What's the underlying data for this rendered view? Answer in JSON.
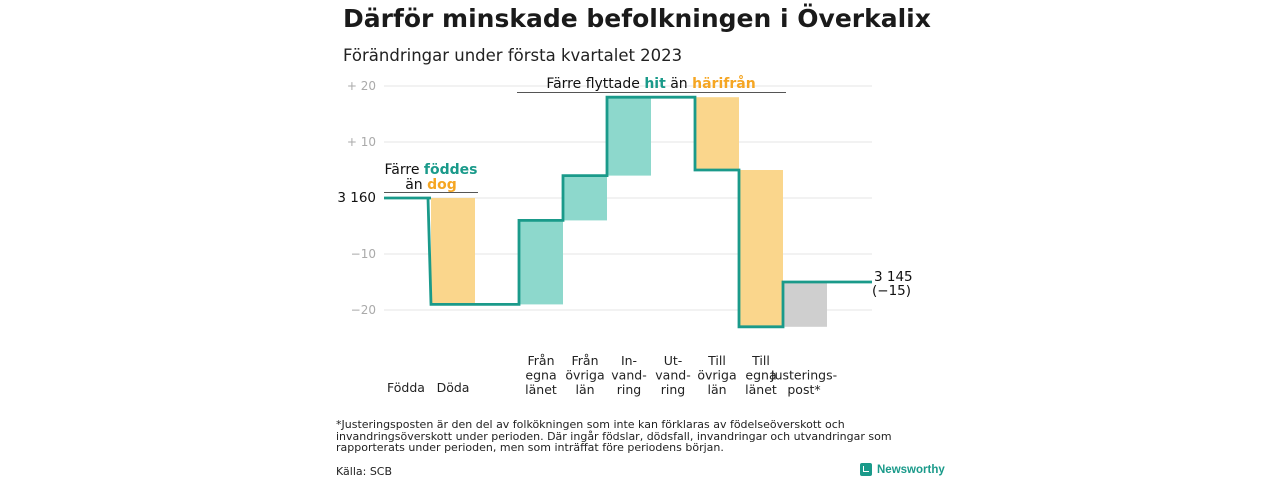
{
  "header": {
    "title": "Därför minskade befolkningen i Överkalix",
    "subtitle": "Förändringar under första kvartalet 2023"
  },
  "colors": {
    "teal": "#1a9a8a",
    "teal_fill": "#8dd8cc",
    "orange_fill": "#fad68c",
    "orange_text": "#f5a623",
    "gray_fill": "#cfcfcf"
  },
  "chart_data": {
    "type": "waterfall",
    "start_value": 3160,
    "end_value": 3145,
    "total_change": -15,
    "start_label": "3 160",
    "end_label": "3 145",
    "end_change_label": "(−15)",
    "ylim": [
      -24,
      22
    ],
    "y_ticks": [
      {
        "value": 20,
        "label": "+ 20"
      },
      {
        "value": 10,
        "label": "+ 10"
      },
      {
        "value": 0,
        "label": ""
      },
      {
        "value": -10,
        "label": "−10"
      },
      {
        "value": -20,
        "label": "−20"
      }
    ],
    "steps": [
      {
        "label": [
          "Födda"
        ],
        "change": 0,
        "color": "none"
      },
      {
        "label": [
          "Döda"
        ],
        "change": -19,
        "color": "orange"
      },
      {
        "label": [
          "Från",
          "egna",
          "länet"
        ],
        "change": 15,
        "color": "teal"
      },
      {
        "label": [
          "Från",
          "övriga",
          "län"
        ],
        "change": 8,
        "color": "teal"
      },
      {
        "label": [
          "In-",
          "vand-",
          "ring"
        ],
        "change": 14,
        "color": "teal"
      },
      {
        "label": [
          "Ut-",
          "vand-",
          "ring"
        ],
        "change": 0,
        "color": "none"
      },
      {
        "label": [
          "Till",
          "övriga",
          "län"
        ],
        "change": -13,
        "color": "orange"
      },
      {
        "label": [
          "Till",
          "egna",
          "länet"
        ],
        "change": -28,
        "color": "orange"
      },
      {
        "label": [
          "Justerings-",
          "post*"
        ],
        "change": 8,
        "color": "gray"
      }
    ],
    "annotations": {
      "births": {
        "line1": "Färre",
        "teal_word": "föddes",
        "line2": "än",
        "orange_word": "dog"
      },
      "migration": {
        "prefix": "Färre flyttade",
        "teal_word": "hit",
        "middle": "än",
        "orange_word": "härifrån"
      }
    }
  },
  "footer": {
    "footnote": "*Justeringsposten är den del av folkökningen som inte kan förklaras av födelseöverskott och invandringsöverskott under perioden. Där ingår födslar, dödsfall, invandringar och utvandringar som rapporterats under perioden, men som inträffat före periodens början.",
    "source": "Källa: SCB",
    "brand": "Newsworthy"
  }
}
